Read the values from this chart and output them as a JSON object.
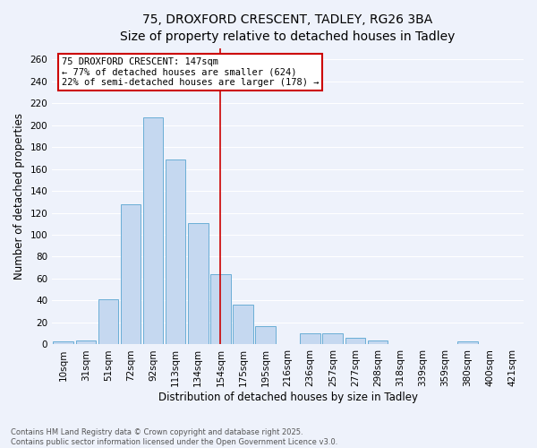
{
  "title": "75, DROXFORD CRESCENT, TADLEY, RG26 3BA",
  "subtitle": "Size of property relative to detached houses in Tadley",
  "xlabel": "Distribution of detached houses by size in Tadley",
  "ylabel": "Number of detached properties",
  "bar_labels": [
    "10sqm",
    "31sqm",
    "51sqm",
    "72sqm",
    "92sqm",
    "113sqm",
    "134sqm",
    "154sqm",
    "175sqm",
    "195sqm",
    "216sqm",
    "236sqm",
    "257sqm",
    "277sqm",
    "298sqm",
    "318sqm",
    "339sqm",
    "359sqm",
    "380sqm",
    "400sqm",
    "421sqm"
  ],
  "bar_values": [
    3,
    4,
    41,
    128,
    207,
    169,
    111,
    64,
    36,
    17,
    0,
    10,
    10,
    6,
    4,
    0,
    0,
    0,
    3,
    0,
    0
  ],
  "bar_color": "#c5d8f0",
  "bar_edge_color": "#6aaed6",
  "vline_index": 7,
  "vline_color": "#cc0000",
  "annotation_line1": "75 DROXFORD CRESCENT: 147sqm",
  "annotation_line2": "← 77% of detached houses are smaller (624)",
  "annotation_line3": "22% of semi-detached houses are larger (178) →",
  "annotation_box_color": "#ffffff",
  "annotation_box_edge": "#cc0000",
  "ylim": [
    0,
    270
  ],
  "yticks": [
    0,
    20,
    40,
    60,
    80,
    100,
    120,
    140,
    160,
    180,
    200,
    220,
    240,
    260
  ],
  "footer_line1": "Contains HM Land Registry data © Crown copyright and database right 2025.",
  "footer_line2": "Contains public sector information licensed under the Open Government Licence v3.0.",
  "bg_color": "#eef2fb",
  "grid_color": "#ffffff",
  "title_fontsize": 10,
  "subtitle_fontsize": 9.5,
  "axis_label_fontsize": 8.5,
  "tick_fontsize": 7.5
}
